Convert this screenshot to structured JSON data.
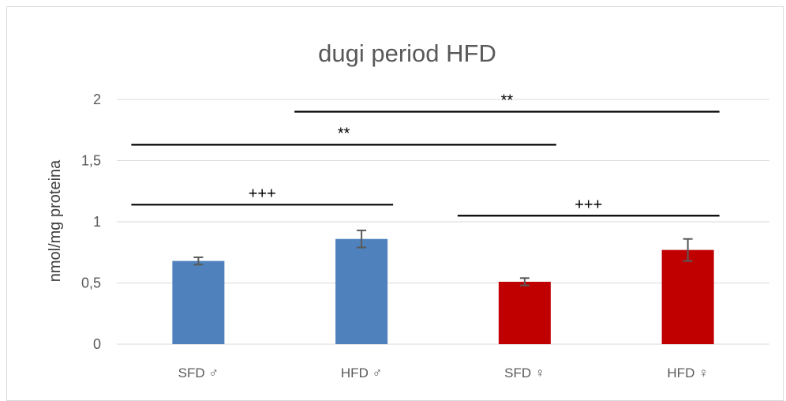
{
  "chart_data": {
    "type": "bar",
    "title": "dugi period HFD",
    "xlabel": "",
    "ylabel": "nmol/mg proteina",
    "ylim": [
      0,
      2
    ],
    "yticks": [
      {
        "value": 0,
        "label": "0"
      },
      {
        "value": 0.5,
        "label": "0,5"
      },
      {
        "value": 1,
        "label": "1"
      },
      {
        "value": 1.5,
        "label": "1,5"
      },
      {
        "value": 2,
        "label": "2"
      }
    ],
    "grid": true,
    "categories": [
      "SFD ♂",
      "HFD ♂",
      "SFD ♀",
      "HFD ♀"
    ],
    "values": [
      0.68,
      0.86,
      0.51,
      0.77
    ],
    "errors": [
      0.03,
      0.07,
      0.03,
      0.09
    ],
    "colors": [
      "#4f81bd",
      "#4f81bd",
      "#c00000",
      "#c00000"
    ],
    "annotations": [
      {
        "text": "+++",
        "from": 0,
        "to": 1,
        "y": 1.14
      },
      {
        "text": "**",
        "from": 0,
        "to": 2,
        "y": 1.63
      },
      {
        "text": "**",
        "from": 1,
        "to": 3,
        "y": 1.9
      },
      {
        "text": "+++",
        "from": 2,
        "to": 3,
        "y": 1.05
      }
    ]
  }
}
